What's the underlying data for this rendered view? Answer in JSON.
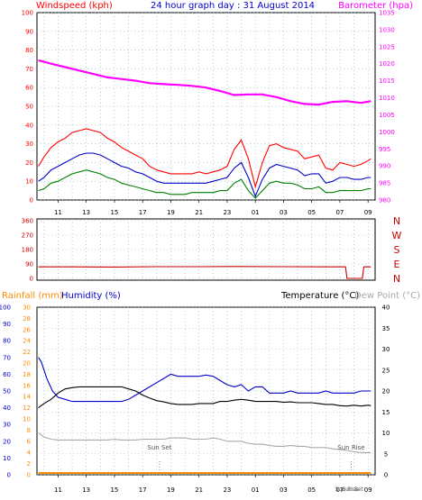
{
  "chart_data": [
    {
      "panel": "wind-baro",
      "type": "line",
      "title": "24 hour graph day : 31 August 2014",
      "left_label": "Windspeed (kph)",
      "right_label": "Barometer (hpa)",
      "x_ticks": [
        "11",
        "13",
        "15",
        "17",
        "19",
        "21",
        "23",
        "01",
        "03",
        "05",
        "07",
        "09"
      ],
      "x_range_hours": [
        9.5,
        33.5
      ],
      "ylim_left": [
        0,
        100
      ],
      "y_ticks_left": [
        "0",
        "10",
        "20",
        "30",
        "40",
        "50",
        "60",
        "70",
        "80",
        "90",
        "100"
      ],
      "ylim_right": [
        980,
        1035
      ],
      "y_ticks_right": [
        "980",
        "985",
        "990",
        "995",
        "1000",
        "1005",
        "1010",
        "1015",
        "1020",
        "1025",
        "1030",
        "1035"
      ],
      "grid": true,
      "series": [
        {
          "key": "gust",
          "color": "#ff0000",
          "axis": "left",
          "x": [
            9.6,
            10,
            10.5,
            11,
            11.5,
            12,
            12.5,
            13,
            13.5,
            14,
            14.5,
            15,
            15.5,
            16,
            16.5,
            17,
            17.5,
            18,
            18.5,
            19,
            19.5,
            20,
            20.5,
            21,
            21.5,
            22,
            22.5,
            23,
            23.5,
            24,
            24.5,
            25,
            25.5,
            26,
            26.5,
            27,
            27.5,
            28,
            28.5,
            29,
            29.5,
            30,
            30.5,
            31,
            31.5,
            32,
            32.5,
            33,
            33.2
          ],
          "y": [
            18,
            23,
            28,
            31,
            33,
            36,
            37,
            38,
            37,
            36,
            33,
            31,
            28,
            26,
            24,
            22,
            18,
            16,
            15,
            14,
            14,
            14,
            14,
            15,
            14,
            15,
            16,
            18,
            27,
            32,
            22,
            7,
            20,
            29,
            30,
            28,
            27,
            26,
            22,
            23,
            24,
            17,
            16,
            20,
            19,
            18,
            19,
            21,
            22
          ]
        },
        {
          "key": "avg",
          "color": "#0000cc",
          "axis": "left",
          "x": [
            9.6,
            10,
            10.5,
            11,
            11.5,
            12,
            12.5,
            13,
            13.5,
            14,
            14.5,
            15,
            15.5,
            16,
            16.5,
            17,
            17.5,
            18,
            18.5,
            19,
            19.5,
            20,
            20.5,
            21,
            21.5,
            22,
            22.5,
            23,
            23.5,
            24,
            24.5,
            25,
            25.5,
            26,
            26.5,
            27,
            27.5,
            28,
            28.5,
            29,
            29.5,
            30,
            30.5,
            31,
            31.5,
            32,
            32.5,
            33,
            33.2
          ],
          "y": [
            10,
            12,
            16,
            18,
            20,
            22,
            24,
            25,
            25,
            24,
            22,
            20,
            18,
            17,
            15,
            14,
            12,
            10,
            9,
            9,
            9,
            9,
            9,
            9,
            9,
            10,
            11,
            12,
            17,
            20,
            12,
            2,
            11,
            17,
            19,
            18,
            17,
            16,
            13,
            14,
            14,
            9,
            10,
            12,
            12,
            11,
            11,
            12,
            12
          ]
        },
        {
          "key": "low",
          "color": "#008000",
          "axis": "left",
          "x": [
            9.6,
            10,
            10.5,
            11,
            11.5,
            12,
            12.5,
            13,
            13.5,
            14,
            14.5,
            15,
            15.5,
            16,
            16.5,
            17,
            17.5,
            18,
            18.5,
            19,
            19.5,
            20,
            20.5,
            21,
            21.5,
            22,
            22.5,
            23,
            23.5,
            24,
            24.5,
            25,
            25.5,
            26,
            26.5,
            27,
            27.5,
            28,
            28.5,
            29,
            29.5,
            30,
            30.5,
            31,
            31.5,
            32,
            32.5,
            33,
            33.2
          ],
          "y": [
            5,
            6,
            9,
            10,
            12,
            14,
            15,
            16,
            15,
            14,
            12,
            11,
            9,
            8,
            7,
            6,
            5,
            4,
            4,
            3,
            3,
            3,
            4,
            4,
            4,
            4,
            5,
            5,
            9,
            11,
            5,
            1,
            5,
            9,
            10,
            9,
            9,
            8,
            6,
            6,
            7,
            4,
            4,
            5,
            5,
            5,
            5,
            6,
            6
          ]
        },
        {
          "key": "barometer",
          "color": "#ff00ff",
          "axis": "right",
          "x": [
            9.6,
            10.5,
            11.5,
            12.5,
            13.5,
            14.5,
            15.5,
            16.5,
            17.5,
            18.5,
            19.5,
            20.5,
            21.5,
            22.5,
            23.5,
            24.5,
            25.5,
            26.5,
            27.5,
            28.5,
            29.5,
            30.5,
            31.5,
            32.5,
            33.2
          ],
          "y": [
            1021,
            1020,
            1019,
            1018,
            1017,
            1016,
            1015.5,
            1015,
            1014.3,
            1014,
            1013.8,
            1013.5,
            1013,
            1012,
            1010.8,
            1011,
            1011,
            1010.2,
            1009,
            1008.2,
            1008,
            1008.8,
            1009,
            1008.5,
            1009
          ]
        }
      ]
    },
    {
      "panel": "wind-direction",
      "type": "line",
      "left_ticks": [
        "0",
        "90",
        "180",
        "270",
        "360"
      ],
      "right_ticks": [
        "N",
        "W",
        "S",
        "E",
        "N"
      ],
      "ylim": [
        0,
        360
      ],
      "series": [
        {
          "key": "direction",
          "color": "#cc0000",
          "x": [
            9.6,
            12,
            15,
            18,
            21,
            24,
            27,
            30,
            31.4,
            31.5,
            31.7,
            32.6,
            32.7,
            33.0,
            33.2
          ],
          "y": [
            72,
            72,
            71,
            73,
            73,
            74,
            73,
            72,
            72,
            0,
            0,
            0,
            72,
            72,
            72
          ]
        }
      ]
    },
    {
      "panel": "rain-hum-temp",
      "type": "line",
      "labels": {
        "rainfall": "Rainfall (mm)",
        "humidity": "Humidity (%)",
        "temperature": "Temperature (°C)",
        "dewpoint": "Dew Point (°C)"
      },
      "rain_ticks": [
        "0",
        "2",
        "4",
        "6",
        "8",
        "10",
        "12",
        "14",
        "16",
        "18",
        "20",
        "22",
        "24",
        "26",
        "28",
        "30"
      ],
      "humidity_ticks": [
        "0",
        "10",
        "20",
        "30",
        "40",
        "50",
        "60",
        "70",
        "80",
        "90",
        "100"
      ],
      "temp_ticks": [
        "0",
        "5",
        "10",
        "15",
        "20",
        "25",
        "30",
        "35",
        "40"
      ],
      "ylim_temp": [
        0,
        40
      ],
      "annotations": [
        {
          "text": "Sun Set",
          "x_hour": 18.2
        },
        {
          "text": "Sun Rise",
          "x_hour": 31.8
        },
        {
          "text": "Sun Rise",
          "x_hour": 31.5,
          "small": true
        },
        {
          "text": "Sun Set",
          "x_hour": 31.9,
          "small": true
        }
      ],
      "series": [
        {
          "key": "humidity",
          "color": "#0000cc",
          "axis": "temp",
          "x": [
            9.6,
            9.8,
            10.2,
            10.6,
            11,
            11.5,
            12,
            12.5,
            13,
            13.5,
            14,
            14.5,
            15,
            15.5,
            16,
            16.5,
            17,
            17.5,
            18,
            18.5,
            19,
            19.5,
            20,
            20.5,
            21,
            21.5,
            22,
            22.5,
            23,
            23.5,
            24,
            24.5,
            25,
            25.5,
            26,
            26.5,
            27,
            27.5,
            28,
            28.5,
            29,
            29.5,
            30,
            30.5,
            31,
            31.5,
            32,
            32.5,
            33,
            33.2
          ],
          "y": [
            28,
            27,
            23,
            20,
            18.5,
            18,
            17.5,
            17.5,
            17.5,
            17.5,
            17.5,
            17.5,
            17.5,
            17.5,
            18,
            19,
            20,
            21,
            22,
            23,
            24,
            23.5,
            23.5,
            23.5,
            23.5,
            23.8,
            23.5,
            22.5,
            21.5,
            21,
            21.5,
            20,
            21,
            21,
            19.5,
            19.5,
            19.5,
            20,
            19.5,
            19.5,
            19.5,
            19.5,
            20,
            19.5,
            19.5,
            19.5,
            19.5,
            20,
            20,
            20
          ]
        },
        {
          "key": "temperature",
          "color": "#000000",
          "axis": "temp",
          "x": [
            9.6,
            10,
            10.5,
            11,
            11.5,
            12,
            12.5,
            13,
            13.5,
            14,
            14.5,
            15,
            15.5,
            16,
            16.5,
            17,
            17.5,
            18,
            18.5,
            19,
            19.5,
            20,
            20.5,
            21,
            21.5,
            22,
            22.5,
            23,
            23.5,
            24,
            24.5,
            25,
            25.5,
            26,
            26.5,
            27,
            27.5,
            28,
            28.5,
            29,
            29.5,
            30,
            30.5,
            31,
            31.5,
            32,
            32.5,
            33,
            33.2
          ],
          "y": [
            16,
            17,
            18,
            19.5,
            20.5,
            20.8,
            21,
            21,
            21,
            21,
            21,
            21,
            21,
            20.5,
            20,
            19,
            18.3,
            17.7,
            17.4,
            17,
            16.8,
            16.8,
            16.8,
            17,
            17,
            17,
            17.5,
            17.5,
            17.8,
            18,
            17.8,
            17.5,
            17.5,
            17.5,
            17.5,
            17.3,
            17.4,
            17.2,
            17.2,
            17.2,
            17,
            16.8,
            16.8,
            16.5,
            16.4,
            16.6,
            16.4,
            16.6,
            16.5
          ]
        },
        {
          "key": "dewpoint",
          "color": "#aaaaaa",
          "axis": "temp",
          "x": [
            9.6,
            10,
            10.5,
            11,
            11.5,
            12,
            12.5,
            13,
            13.5,
            14,
            14.5,
            15,
            15.5,
            16,
            16.5,
            17,
            17.5,
            18,
            18.5,
            19,
            19.5,
            20,
            20.5,
            21,
            21.5,
            22,
            22.5,
            23,
            23.5,
            24,
            24.5,
            25,
            25.5,
            26,
            26.5,
            27,
            27.5,
            28,
            28.5,
            29,
            29.5,
            30,
            30.5,
            31,
            31.5,
            32,
            32.5,
            33,
            33.2
          ],
          "y": [
            10,
            9,
            8.5,
            8.3,
            8.3,
            8.3,
            8.3,
            8.3,
            8.3,
            8.3,
            8.3,
            8.5,
            8.3,
            8.3,
            8.3,
            8.5,
            8.5,
            8.5,
            8.5,
            8.8,
            8.8,
            8.8,
            8.5,
            8.5,
            8.5,
            8.8,
            8.5,
            8,
            8,
            8,
            7.5,
            7.3,
            7.3,
            7,
            6.8,
            6.8,
            7,
            6.8,
            6.8,
            6.5,
            6.5,
            6.5,
            6.2,
            6,
            5.8,
            5.5,
            5.3,
            5.3,
            5.3
          ]
        },
        {
          "key": "rainfall",
          "color": "#ff8c00",
          "axis": "rain",
          "x": [
            9.6,
            33.2
          ],
          "y": [
            0,
            0
          ]
        }
      ]
    }
  ]
}
